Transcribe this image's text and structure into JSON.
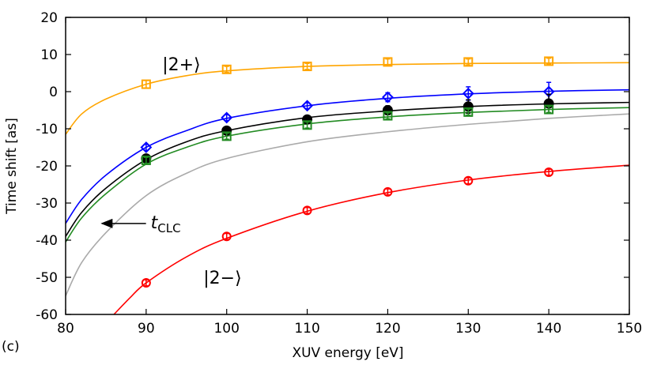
{
  "chart_data": {
    "type": "scatter",
    "panel_label": "(c)",
    "xlabel": "XUV energy [eV]",
    "ylabel": "Time shift [as]",
    "xlim": [
      80,
      150
    ],
    "ylim": [
      -60,
      20
    ],
    "xticks": [
      80,
      90,
      100,
      110,
      120,
      130,
      140,
      150
    ],
    "yticks": [
      20,
      10,
      0,
      -10,
      -20,
      -30,
      -40,
      -50,
      -60
    ],
    "grid": false,
    "annotations": [
      {
        "text": "|2+⟩",
        "x": 92,
        "y": 7.5
      },
      {
        "text": "|2−⟩",
        "x": 103,
        "y": -50
      },
      {
        "text_main": "t",
        "text_sub": "CLC",
        "x": 89,
        "y": -35.5,
        "arrow_to": [
          84.5,
          -35.5
        ]
      }
    ],
    "series": [
      {
        "color": "#ffa500",
        "marker": "open-square",
        "points": {
          "x": [
            90,
            100,
            110,
            120,
            130,
            140
          ],
          "y": [
            2,
            6,
            6.8,
            8,
            8,
            8.2
          ],
          "err": [
            1,
            0.8,
            0.8,
            0.8,
            0.8,
            0.8
          ]
        },
        "curve": {
          "x": [
            80,
            82,
            85,
            90,
            95,
            100,
            110,
            120,
            130,
            140,
            150
          ],
          "y": [
            -11.5,
            -6,
            -2,
            2,
            4.3,
            5.6,
            6.8,
            7.3,
            7.6,
            7.7,
            7.8
          ]
        }
      },
      {
        "color": "#0000ff",
        "marker": "open-diamond",
        "points": {
          "x": [
            90,
            100,
            110,
            120,
            130,
            140
          ],
          "y": [
            -15,
            -7,
            -3.8,
            -1.5,
            -0.5,
            0
          ],
          "err": [
            0.8,
            0.8,
            0.8,
            1.2,
            1.8,
            2.5
          ]
        },
        "curve": {
          "x": [
            80,
            82,
            85,
            90,
            95,
            100,
            110,
            120,
            130,
            140,
            150
          ],
          "y": [
            -35.5,
            -29,
            -22.5,
            -15,
            -10.5,
            -7.2,
            -3.8,
            -1.8,
            -0.6,
            0.1,
            0.5
          ]
        }
      },
      {
        "color": "#000000",
        "marker": "filled-circle",
        "points": {
          "x": [
            90,
            100,
            110,
            120,
            130,
            140
          ],
          "y": [
            -18,
            -10.5,
            -7.5,
            -5,
            -4,
            -3.2
          ],
          "err": [
            0.8,
            0.8,
            0.8,
            1.2,
            1.8,
            2.5
          ]
        },
        "curve": {
          "x": [
            80,
            82,
            85,
            90,
            95,
            100,
            110,
            120,
            130,
            140,
            150
          ],
          "y": [
            -39,
            -32.5,
            -26,
            -18.3,
            -13.5,
            -10.5,
            -7,
            -5.2,
            -4,
            -3.3,
            -2.9
          ]
        }
      },
      {
        "color": "#228b22",
        "marker": "open-square",
        "points": {
          "x": [
            90,
            100,
            110,
            120,
            130,
            140
          ],
          "y": [
            -18.5,
            -12,
            -9,
            -6.5,
            -5.5,
            -4.8
          ],
          "err": [
            0.8,
            0.8,
            0.8,
            0.8,
            0.8,
            0.8
          ]
        },
        "curve": {
          "x": [
            80,
            82,
            85,
            90,
            95,
            100,
            110,
            120,
            130,
            140,
            150
          ],
          "y": [
            -40.5,
            -34,
            -27.5,
            -19.5,
            -15,
            -12,
            -8.7,
            -6.8,
            -5.6,
            -4.8,
            -4.3
          ]
        }
      },
      {
        "color": "#aaaaaa",
        "marker": "none",
        "points": {
          "x": [],
          "y": [],
          "err": []
        },
        "curve": {
          "x": [
            80,
            82,
            85,
            90,
            95,
            100,
            110,
            120,
            130,
            140,
            150
          ],
          "y": [
            -55,
            -46,
            -38,
            -28,
            -22,
            -18,
            -13.5,
            -10.8,
            -8.8,
            -7.2,
            -6
          ]
        }
      },
      {
        "color": "#ff0000",
        "marker": "open-circle",
        "points": {
          "x": [
            90,
            100,
            110,
            120,
            130,
            140
          ],
          "y": [
            -51.5,
            -39,
            -32,
            -27,
            -24,
            -21.7
          ],
          "err": [
            0.8,
            0.8,
            0.8,
            0.8,
            0.8,
            0.8
          ]
        },
        "curve": {
          "x": [
            86,
            88,
            90,
            95,
            100,
            110,
            120,
            130,
            140,
            150
          ],
          "y": [
            -60,
            -55.5,
            -51.5,
            -44.5,
            -39.5,
            -32.2,
            -27.2,
            -23.8,
            -21.5,
            -19.8
          ]
        }
      }
    ]
  }
}
